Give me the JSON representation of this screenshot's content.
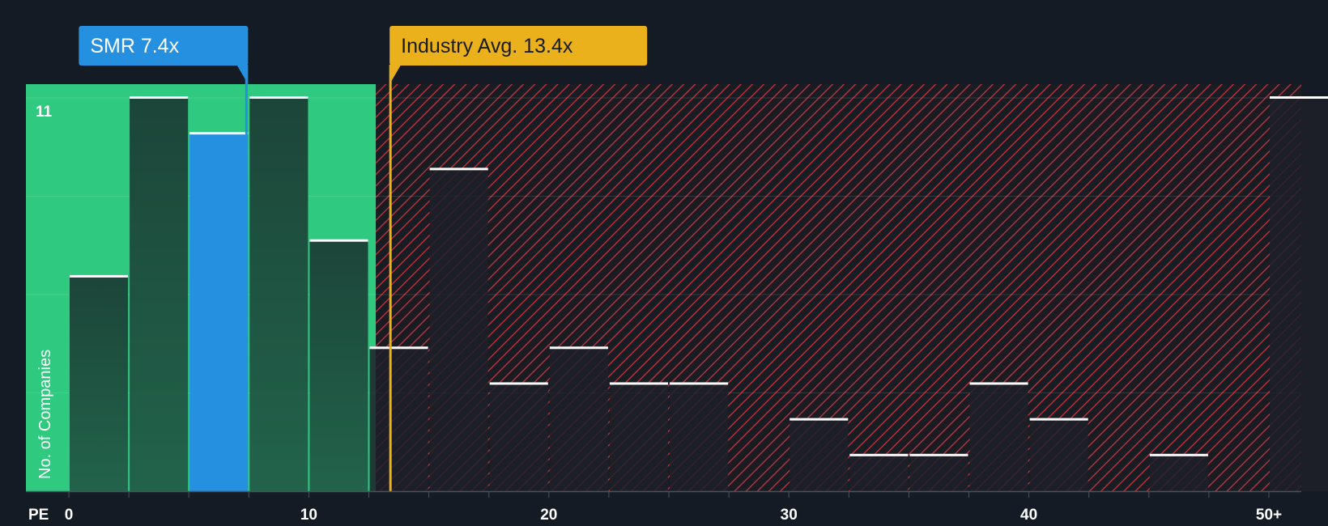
{
  "chart_data": {
    "type": "bar",
    "xlabel": "PE",
    "ylabel": "No. of Companies",
    "y_max_label": "11",
    "ylim": [
      0,
      11
    ],
    "bin_width": 2.5,
    "bins": [
      {
        "x_start": 0,
        "count": 6
      },
      {
        "x_start": 2.5,
        "count": 11
      },
      {
        "x_start": 5,
        "count": 10
      },
      {
        "x_start": 7.5,
        "count": 11
      },
      {
        "x_start": 10,
        "count": 7
      },
      {
        "x_start": 12.5,
        "count": 4
      },
      {
        "x_start": 15,
        "count": 9
      },
      {
        "x_start": 17.5,
        "count": 3
      },
      {
        "x_start": 20,
        "count": 4
      },
      {
        "x_start": 22.5,
        "count": 3
      },
      {
        "x_start": 25,
        "count": 3
      },
      {
        "x_start": 30,
        "count": 2
      },
      {
        "x_start": 32.5,
        "count": 1
      },
      {
        "x_start": 35,
        "count": 1
      },
      {
        "x_start": 37.5,
        "count": 3
      },
      {
        "x_start": 40,
        "count": 2
      },
      {
        "x_start": 45,
        "count": 1
      },
      {
        "x_start": 50,
        "count": 11
      }
    ],
    "x_ticks": [
      {
        "value": 0,
        "label": "0"
      },
      {
        "value": 10,
        "label": "10"
      },
      {
        "value": 20,
        "label": "20"
      },
      {
        "value": 30,
        "label": "30"
      },
      {
        "value": 40,
        "label": "40"
      },
      {
        "value": 50,
        "label": "50+"
      }
    ],
    "company": {
      "label": "SMR 7.4x",
      "value": 7.4,
      "color": "#2590e0"
    },
    "industry": {
      "label": "Industry Avg. 13.4x",
      "value": 13.4,
      "color": "#eab11d"
    },
    "colors": {
      "background": "#151b24",
      "fair_zone": "#2fc97f",
      "bar_in_zone": "#1d4b3d",
      "highlight_bar": "#2590e0",
      "over_zone_stripe": "#c9343c",
      "bar_over_zone": "#1d2029",
      "cap": "#ffffff"
    }
  }
}
